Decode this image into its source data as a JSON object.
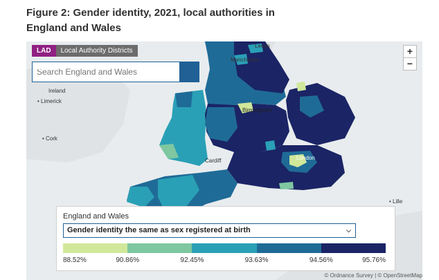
{
  "title": "Figure 2: Gender identity, 2021, local authorities in England and Wales",
  "tabs": {
    "active": "LAD",
    "inactive": "Local Authority Districts"
  },
  "search": {
    "placeholder": "Search England and Wales"
  },
  "zoom": {
    "in": "+",
    "out": "−"
  },
  "places": {
    "leeds": "Leeds",
    "manchester": "Manchester",
    "ireland": "Ireland",
    "limerick": "Limerick",
    "birmingham": "Birmingham",
    "cork": "Cork",
    "cardiff": "Cardiff",
    "london": "London",
    "lille": "Lille"
  },
  "legend": {
    "title": "England and Wales",
    "selected": "Gender identity the same as sex registered at birth",
    "colors": [
      "#d1e89a",
      "#7ec7a0",
      "#2aa0b6",
      "#1f6b97",
      "#1b2465"
    ],
    "breaks": [
      "88.52%",
      "90.86%",
      "92.45%",
      "93.63%",
      "94.56%",
      "95.76%"
    ]
  },
  "attribution": "© Ordnance Survey | © OpenStreetMap"
}
